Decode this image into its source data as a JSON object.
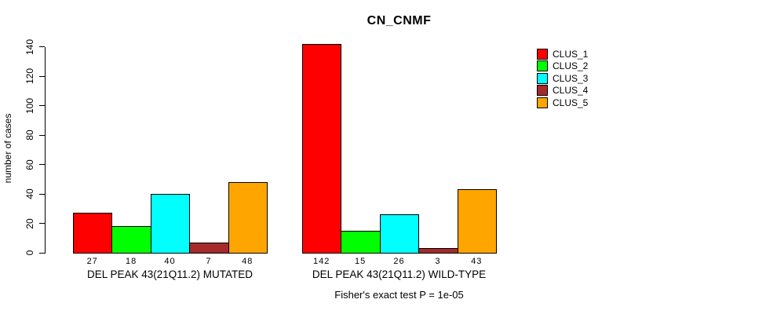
{
  "chart_data": {
    "type": "bar",
    "title": "CN_CNMF",
    "xlabel": "",
    "ylabel": "number of cases",
    "ylim": [
      0,
      145
    ],
    "yticks": [
      0,
      20,
      40,
      60,
      80,
      100,
      120,
      140
    ],
    "grid": false,
    "legend_position": "top-right",
    "categories": [
      "DEL PEAK 43(21Q11.2) MUTATED",
      "DEL PEAK 43(21Q11.2) WILD-TYPE"
    ],
    "series": [
      {
        "name": "CLUS_1",
        "color": "#FF0000",
        "values": [
          27,
          142
        ]
      },
      {
        "name": "CLUS_2",
        "color": "#00FF00",
        "values": [
          18,
          15
        ]
      },
      {
        "name": "CLUS_3",
        "color": "#00FFFF",
        "values": [
          40,
          26
        ]
      },
      {
        "name": "CLUS_4",
        "color": "#A52A2A",
        "values": [
          7,
          3
        ]
      },
      {
        "name": "CLUS_5",
        "color": "#FFA500",
        "values": [
          48,
          43
        ]
      }
    ],
    "bar_value_labels_shown": true,
    "annotation": "Fisher's exact test P = 1e-05"
  }
}
